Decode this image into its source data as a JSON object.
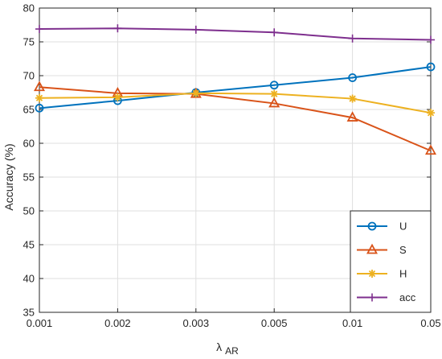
{
  "chart_data": {
    "type": "line",
    "categories": [
      "0.001",
      "0.002",
      "0.003",
      "0.005",
      "0.01",
      "0.05"
    ],
    "ylabel": "Accuracy (%)",
    "xlabel": "λ",
    "xlabel_sub": "AR",
    "ylim": [
      35,
      80
    ],
    "yticks": [
      "35",
      "40",
      "45",
      "50",
      "55",
      "60",
      "65",
      "70",
      "75",
      "80"
    ],
    "grid": true,
    "legend_position": "bottom-right",
    "series": [
      {
        "name": "U",
        "color": "#0072BD",
        "marker": "circle",
        "values": [
          65.2,
          66.3,
          67.5,
          68.6,
          69.7,
          71.3
        ]
      },
      {
        "name": "S",
        "color": "#D95319",
        "marker": "triangle",
        "values": [
          68.3,
          67.4,
          67.3,
          65.9,
          63.8,
          58.9
        ]
      },
      {
        "name": "H",
        "color": "#EDB120",
        "marker": "asterisk",
        "values": [
          66.7,
          66.8,
          67.4,
          67.3,
          66.6,
          64.5
        ]
      },
      {
        "name": "acc",
        "color": "#7E2F8E",
        "marker": "plus",
        "values": [
          76.9,
          77.0,
          76.8,
          76.4,
          75.5,
          75.3
        ]
      }
    ]
  }
}
